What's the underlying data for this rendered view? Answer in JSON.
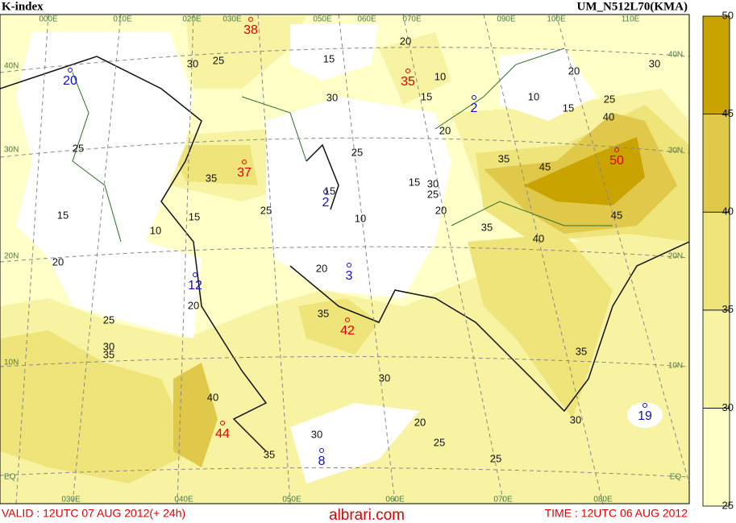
{
  "header": {
    "title": "K-index",
    "model": "UM_N512L70(KMA)"
  },
  "colorbar": {
    "levels": [
      25,
      30,
      35,
      40,
      45,
      50
    ],
    "colors": [
      "#ffffc8",
      "#f8f3a2",
      "#eee47a",
      "#e0c84a",
      "#c9a300"
    ]
  },
  "grid_labels": {
    "lat_left": [
      "40N",
      "30N",
      "20N",
      "10N",
      "EQ"
    ],
    "lat_right": [
      "40N",
      "30N",
      "20N",
      "10N",
      "EQ"
    ],
    "lon_top": [
      "000E",
      "010E",
      "020E",
      "030E",
      "050E",
      "060E",
      "070E",
      "090E",
      "100E",
      "110E"
    ],
    "lon_bottom": [
      "030E",
      "040E",
      "050E",
      "060E",
      "070E",
      "080E"
    ]
  },
  "centers": [
    {
      "value": 38,
      "color": "#e00000"
    },
    {
      "value": 35,
      "color": "#e00000"
    },
    {
      "value": 37,
      "color": "#e00000"
    },
    {
      "value": 50,
      "color": "#e00000"
    },
    {
      "value": 42,
      "color": "#e00000"
    },
    {
      "value": 44,
      "color": "#e00000"
    },
    {
      "value": 20,
      "color": "#1010c0"
    },
    {
      "value": 2,
      "color": "#1010c0"
    },
    {
      "value": 2,
      "color": "#1010c0"
    },
    {
      "value": 12,
      "color": "#1010c0"
    },
    {
      "value": 3,
      "color": "#1010c0"
    },
    {
      "value": 8,
      "color": "#1010c0"
    },
    {
      "value": 19,
      "color": "#1010c0"
    }
  ],
  "contour_labels": [
    15,
    30,
    20,
    10,
    15,
    20,
    25,
    20,
    10,
    15,
    25,
    40,
    30,
    35,
    45,
    45,
    40,
    35,
    20,
    25,
    30,
    15,
    10,
    20,
    35,
    30,
    20,
    25,
    30,
    35,
    40,
    25,
    30,
    35,
    15,
    20,
    10,
    15,
    25,
    35,
    30,
    25,
    25,
    20,
    30,
    35,
    25,
    15
  ],
  "footer": {
    "valid": "VALID : 12UTC 07 AUG 2012(+ 24h)",
    "watermark": "albrari.com",
    "time": "TIME : 12UTC 06 AUG 2012"
  }
}
